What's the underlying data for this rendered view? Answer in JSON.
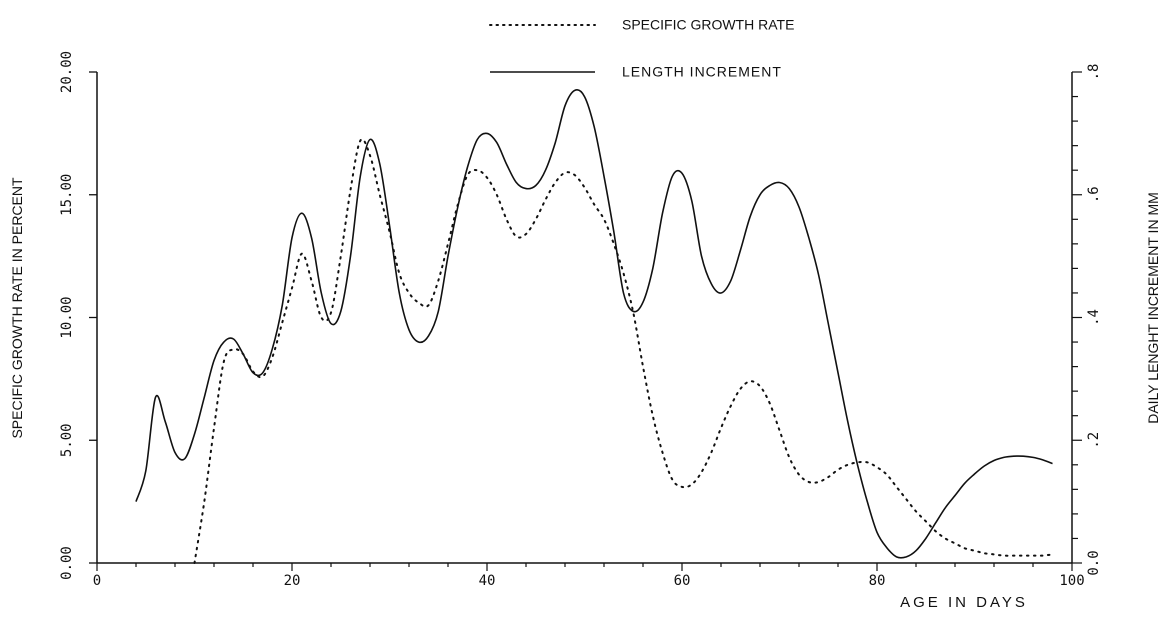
{
  "chart_data": {
    "type": "line",
    "xlabel": "AGE IN DAYS",
    "ylabel": "SPECIFIC GROWTH RATE IN PERCENT",
    "y2label": "DAILY LENGHT INCREMENT IN MM",
    "xlim": [
      0,
      100
    ],
    "ylim": [
      0,
      20
    ],
    "y2lim": [
      0,
      0.8
    ],
    "x_ticks": [
      "0",
      "20",
      "40",
      "60",
      "80",
      "100"
    ],
    "y_ticks": [
      "0.00",
      "5.00",
      "10.00",
      "15.00",
      "20.00"
    ],
    "y2_ticks": [
      "0.0",
      ".2",
      ".4",
      ".6",
      ".8"
    ],
    "grid": false,
    "legend_position": "top-center",
    "series": [
      {
        "name": "SPECIFIC GROWTH RATE",
        "style": "dotted",
        "axis": "left",
        "x": [
          10,
          11,
          12,
          13,
          14,
          15,
          16,
          17,
          18,
          19,
          20,
          21,
          22,
          23,
          24,
          25,
          26,
          27,
          28,
          29,
          30,
          31,
          32,
          33,
          34,
          35,
          36,
          37,
          38,
          39,
          40,
          41,
          42,
          43,
          44,
          45,
          46,
          47,
          48,
          49,
          50,
          51,
          52,
          53,
          54,
          55,
          56,
          57,
          58,
          59,
          60,
          61,
          62,
          63,
          64,
          65,
          66,
          67,
          68,
          69,
          70,
          71,
          72,
          73,
          74,
          75,
          76,
          77,
          78,
          79,
          80,
          81,
          82,
          83,
          84,
          85,
          86,
          87,
          88,
          89,
          90,
          91,
          92,
          93,
          94,
          95,
          96,
          97,
          98
        ],
        "values": [
          0.0,
          2.5,
          5.5,
          8.2,
          8.7,
          8.5,
          7.8,
          7.6,
          8.4,
          9.8,
          11.2,
          12.6,
          11.5,
          10.0,
          10.2,
          12.5,
          15.2,
          17.2,
          16.6,
          15.0,
          13.5,
          11.8,
          11.0,
          10.6,
          10.5,
          11.5,
          13.0,
          14.6,
          15.8,
          16.0,
          15.7,
          15.0,
          14.0,
          13.3,
          13.4,
          14.0,
          14.8,
          15.5,
          15.9,
          15.8,
          15.3,
          14.6,
          14.0,
          13.0,
          11.8,
          10.2,
          8.0,
          6.0,
          4.5,
          3.4,
          3.1,
          3.2,
          3.7,
          4.5,
          5.5,
          6.4,
          7.1,
          7.4,
          7.2,
          6.5,
          5.4,
          4.3,
          3.6,
          3.3,
          3.3,
          3.5,
          3.8,
          4.0,
          4.1,
          4.1,
          3.9,
          3.6,
          3.1,
          2.6,
          2.1,
          1.7,
          1.3,
          1.0,
          0.8,
          0.6,
          0.5,
          0.4,
          0.35,
          0.3,
          0.3,
          0.3,
          0.3,
          0.3,
          0.35
        ]
      },
      {
        "name": "LENGTH INCREMENT",
        "style": "solid",
        "axis": "right",
        "x": [
          4,
          5,
          6,
          7,
          8,
          9,
          10,
          11,
          12,
          13,
          14,
          15,
          16,
          17,
          18,
          19,
          20,
          21,
          22,
          23,
          24,
          25,
          26,
          27,
          28,
          29,
          30,
          31,
          32,
          33,
          34,
          35,
          36,
          37,
          38,
          39,
          40,
          41,
          42,
          43,
          44,
          45,
          46,
          47,
          48,
          49,
          50,
          51,
          52,
          53,
          54,
          55,
          56,
          57,
          58,
          59,
          60,
          61,
          62,
          63,
          64,
          65,
          66,
          67,
          68,
          69,
          70,
          71,
          72,
          73,
          74,
          75,
          76,
          77,
          78,
          79,
          80,
          81,
          82,
          83,
          84,
          85,
          86,
          87,
          88,
          89,
          90,
          91,
          92,
          93,
          94,
          95,
          96,
          97,
          98
        ],
        "values": [
          0.1,
          0.15,
          0.27,
          0.23,
          0.18,
          0.17,
          0.21,
          0.27,
          0.33,
          0.36,
          0.365,
          0.34,
          0.31,
          0.31,
          0.35,
          0.42,
          0.53,
          0.57,
          0.53,
          0.44,
          0.39,
          0.41,
          0.5,
          0.63,
          0.69,
          0.65,
          0.55,
          0.44,
          0.38,
          0.36,
          0.37,
          0.41,
          0.5,
          0.58,
          0.645,
          0.69,
          0.7,
          0.685,
          0.65,
          0.62,
          0.61,
          0.615,
          0.64,
          0.685,
          0.745,
          0.77,
          0.76,
          0.71,
          0.63,
          0.54,
          0.44,
          0.41,
          0.425,
          0.48,
          0.57,
          0.63,
          0.635,
          0.59,
          0.5,
          0.455,
          0.44,
          0.46,
          0.51,
          0.565,
          0.6,
          0.615,
          0.62,
          0.61,
          0.58,
          0.53,
          0.47,
          0.39,
          0.31,
          0.23,
          0.16,
          0.1,
          0.05,
          0.025,
          0.01,
          0.01,
          0.02,
          0.04,
          0.065,
          0.09,
          0.11,
          0.13,
          0.145,
          0.158,
          0.167,
          0.172,
          0.174,
          0.174,
          0.172,
          0.168,
          0.162
        ]
      }
    ]
  }
}
